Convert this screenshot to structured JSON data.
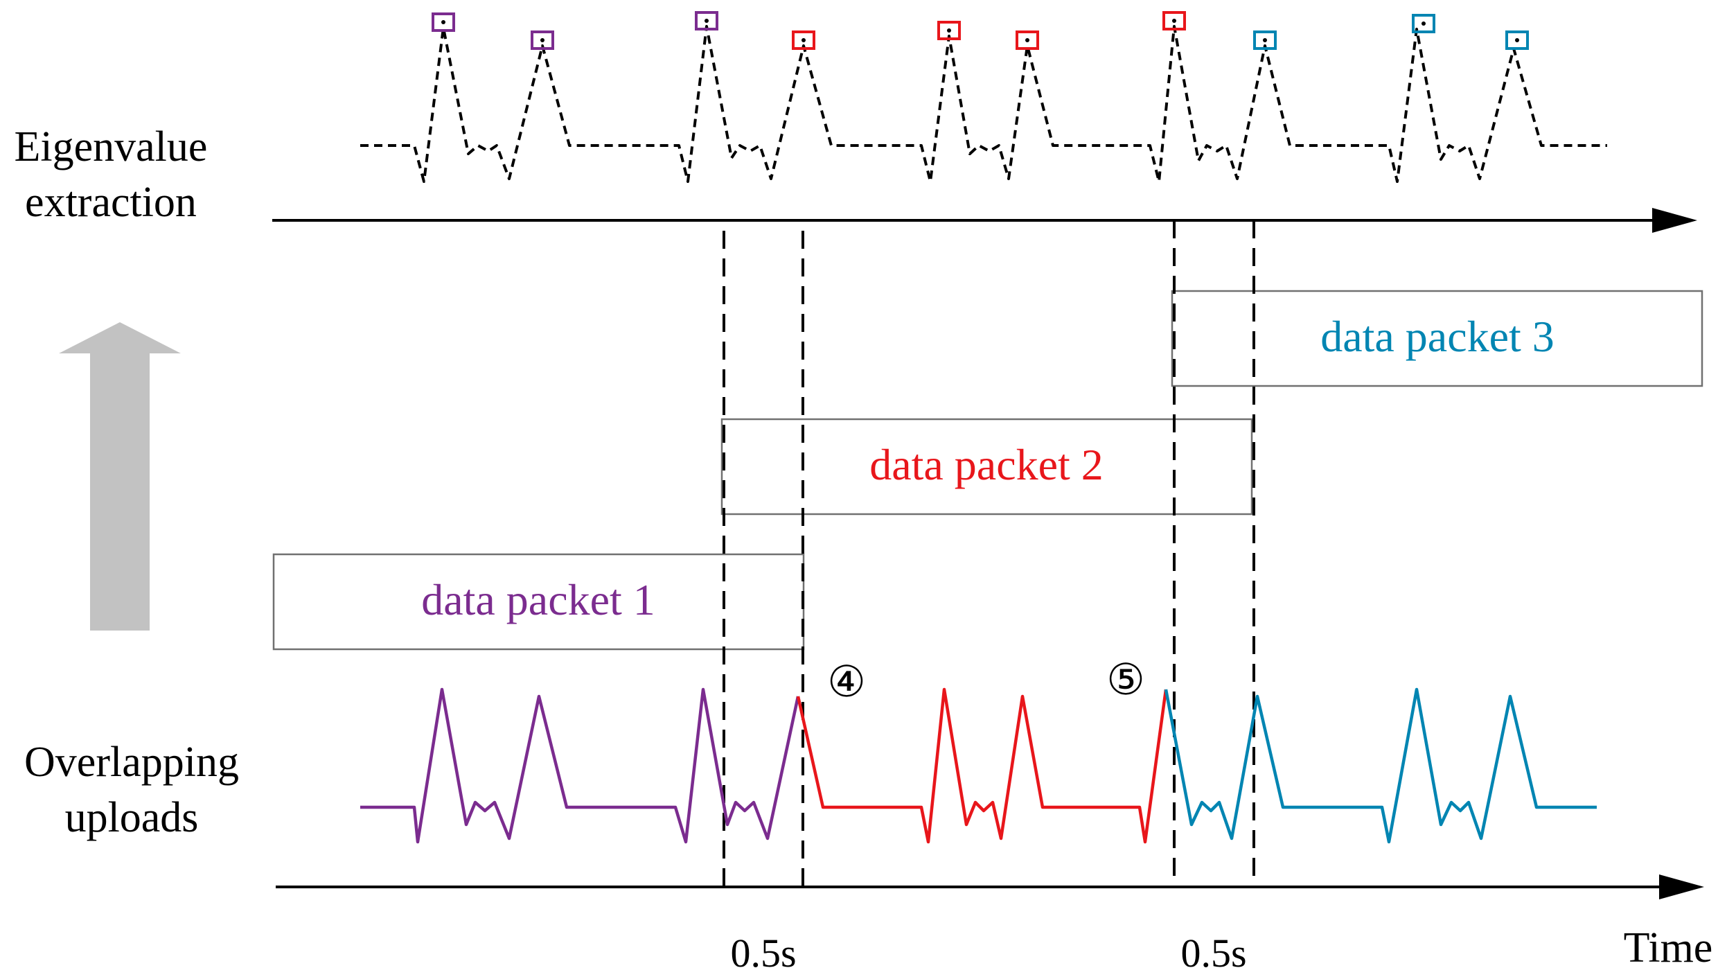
{
  "labels": {
    "eigen_line1": "Eigenvalue",
    "eigen_line2": "extraction",
    "overlap_line1": "Overlapping",
    "overlap_line2": "uploads",
    "time": "Time"
  },
  "packets": [
    {
      "label": "data packet 1",
      "color": "#7b2c8f"
    },
    {
      "label": "data packet 2",
      "color": "#e8161b"
    },
    {
      "label": "data packet 3",
      "color": "#0085b2"
    }
  ],
  "markers": {
    "overlap_1": "④",
    "overlap_2": "⑤"
  },
  "intervals": {
    "first": "0.5s",
    "second": "0.5s"
  },
  "colors": {
    "ink": "#000000",
    "arrow_gray": "#c2c2c2",
    "box_border": "#707070"
  },
  "icons": [
    "up-arrow-icon",
    "square-marker-icon"
  ]
}
